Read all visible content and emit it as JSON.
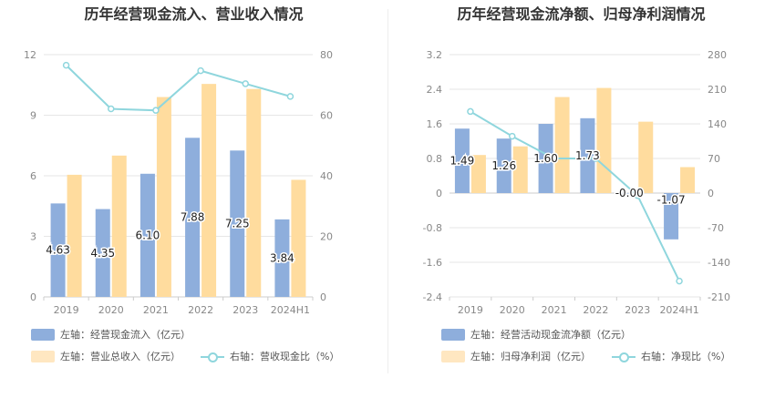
{
  "chart_data": [
    {
      "type": "bar",
      "title": "历年经营现金流入、营业收入情况",
      "categories": [
        "2019",
        "2020",
        "2021",
        "2022",
        "2023",
        "2024H1"
      ],
      "left_axis": {
        "ylim": [
          0,
          12
        ],
        "ticks": [
          0,
          3,
          6,
          9,
          12
        ]
      },
      "right_axis": {
        "ylim": [
          0,
          80
        ],
        "ticks": [
          0,
          20,
          40,
          60,
          80
        ]
      },
      "series": [
        {
          "name": "左轴：经营现金流入（亿元）",
          "axis": "left",
          "type": "bar",
          "color": "#8eaedc",
          "values": [
            4.63,
            4.35,
            6.1,
            7.88,
            7.25,
            3.84
          ],
          "labels": [
            "4.63",
            "4.35",
            "6.10",
            "7.88",
            "7.25",
            "3.84"
          ]
        },
        {
          "name": "左轴：营业总收入（亿元）",
          "axis": "left",
          "type": "bar",
          "color": "#ffdc9e",
          "values": [
            6.05,
            7.0,
            9.9,
            10.55,
            10.3,
            5.8
          ]
        },
        {
          "name": "右轴：营收现金比（%）",
          "axis": "right",
          "type": "line",
          "color": "#8fd6dd",
          "values": [
            76.5,
            62.1,
            61.6,
            74.7,
            70.4,
            66.2
          ]
        }
      ],
      "legend_position": "bottom-left"
    },
    {
      "type": "bar",
      "title": "历年经营现金流净额、归母净利润情况",
      "categories": [
        "2019",
        "2020",
        "2021",
        "2022",
        "2023",
        "2024H1"
      ],
      "left_axis": {
        "ylim": [
          -2.4,
          3.2
        ],
        "ticks": [
          -2.4,
          -1.6,
          -0.8,
          0,
          0.8,
          1.6,
          2.4,
          3.2
        ]
      },
      "right_axis": {
        "ylim": [
          -210,
          280
        ],
        "ticks": [
          -210,
          -140,
          -70,
          0,
          70,
          140,
          210,
          280
        ]
      },
      "series": [
        {
          "name": "左轴：经营活动现金流净额（亿元）",
          "axis": "left",
          "type": "bar",
          "color": "#8eaedc",
          "values": [
            1.49,
            1.26,
            1.6,
            1.73,
            -0.0,
            -1.07
          ],
          "labels": [
            "1.49",
            "1.26",
            "1.60",
            "1.73",
            "-0.00",
            "-1.07"
          ]
        },
        {
          "name": "左轴：归母净利润（亿元）",
          "axis": "left",
          "type": "bar",
          "color": "#ffdc9e",
          "values": [
            0.88,
            1.08,
            2.22,
            2.43,
            1.65,
            0.6
          ]
        },
        {
          "name": "右轴：净现比（%）",
          "axis": "right",
          "type": "line",
          "color": "#8fd6dd",
          "values": [
            165,
            115,
            70,
            70,
            -5,
            -178
          ]
        }
      ],
      "legend_position": "bottom-left"
    }
  ]
}
